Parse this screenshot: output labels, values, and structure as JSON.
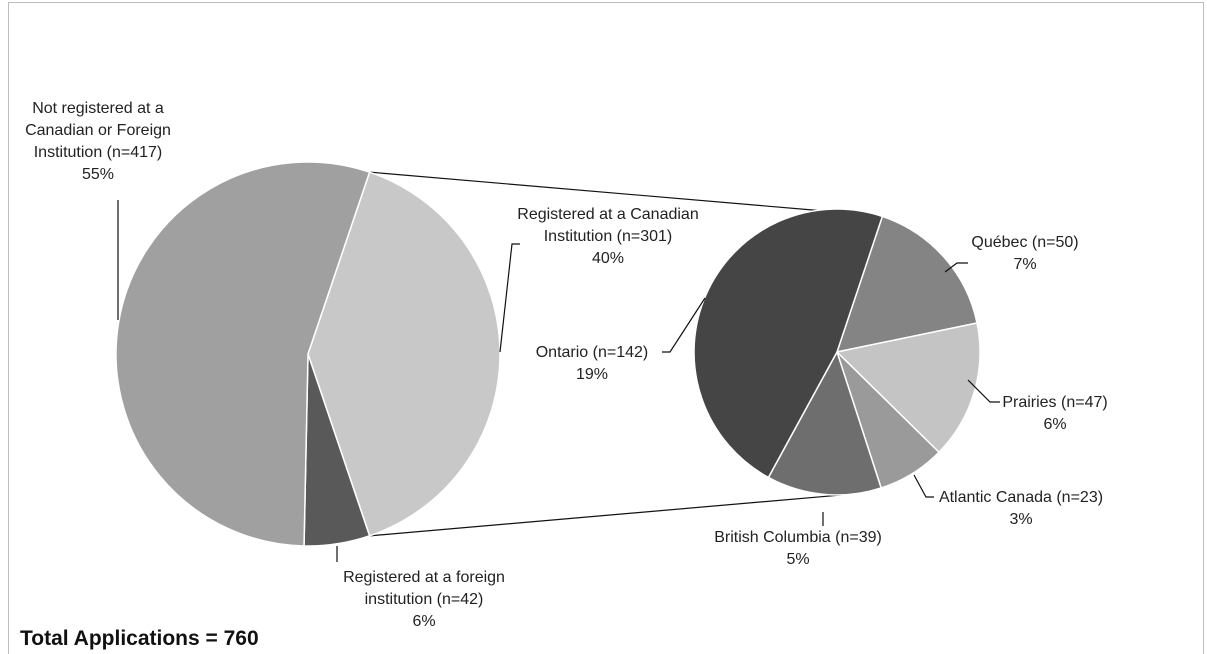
{
  "chart_data": {
    "type": "pie",
    "subtype": "pie-of-pie",
    "total_label": "Total Applications = 760",
    "primary_pie": {
      "slices": [
        {
          "key": "not-registered",
          "label_lines": [
            "Not registered at a",
            "Canadian or Foreign",
            "Institution (n=417)",
            "55%"
          ],
          "n": 417,
          "percent": 55,
          "color": "#a0a0a0"
        },
        {
          "key": "canadian",
          "label_lines": [
            "Registered at a Canadian",
            "Institution (n=301)",
            "40%"
          ],
          "n": 301,
          "percent": 40,
          "color": "#c8c8c8"
        },
        {
          "key": "foreign",
          "label_lines": [
            "Registered at a foreign",
            "institution (n=42)",
            "6%"
          ],
          "n": 42,
          "percent": 6,
          "color": "#595959"
        }
      ]
    },
    "secondary_pie": {
      "breakdown_of": "canadian",
      "slices": [
        {
          "key": "ontario",
          "label_lines": [
            "Ontario (n=142)",
            "19%"
          ],
          "n": 142,
          "percent": 19,
          "color": "#454545"
        },
        {
          "key": "quebec",
          "label_lines": [
            "Québec (n=50)",
            "7%"
          ],
          "n": 50,
          "percent": 7,
          "color": "#848484"
        },
        {
          "key": "prairies",
          "label_lines": [
            "Prairies (n=47)",
            "6%"
          ],
          "n": 47,
          "percent": 6,
          "color": "#c4c4c4"
        },
        {
          "key": "atlantic",
          "label_lines": [
            "Atlantic Canada (n=23)",
            "3%"
          ],
          "n": 23,
          "percent": 3,
          "color": "#9a9a9a"
        },
        {
          "key": "bc",
          "label_lines": [
            "British Columbia (n=39)",
            "5%"
          ],
          "n": 39,
          "percent": 5,
          "color": "#6e6e6e"
        }
      ]
    }
  }
}
